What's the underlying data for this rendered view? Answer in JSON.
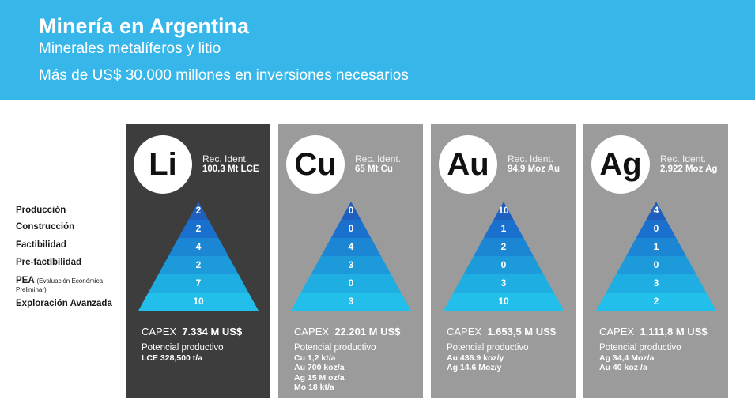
{
  "header": {
    "title": "Minería en Argentina",
    "subtitle1": "Minerales metalíferos y litio",
    "subtitle2": "Más de US$ 30.000 millones en inversiones necesarios"
  },
  "stages": [
    {
      "label": "Producción"
    },
    {
      "label": "Construcción"
    },
    {
      "label": "Factibilidad"
    },
    {
      "label": "Pre-factibilidad"
    },
    {
      "label": "PEA",
      "note1": "(Evaluación Económica",
      "note2": "Preliminar)"
    },
    {
      "label": "Exploración Avanzada"
    }
  ],
  "colors": {
    "header": "#36b6e9",
    "card_dark": "#3d3d3d",
    "card_gray": "#9b9b9b",
    "tiers": [
      "#1f5fbd",
      "#1a71cd",
      "#1b86d4",
      "#1d9ad9",
      "#1eaee1",
      "#21bfe9"
    ]
  },
  "minerals": [
    {
      "symbol": "Li",
      "rec_label": "Rec. Ident.",
      "rec_value": "100.3 Mt LCE",
      "pyramid": [
        "2",
        "2",
        "4",
        "2",
        "7",
        "10"
      ],
      "capex_label": "CAPEX",
      "capex_value": "7.334 M US$",
      "potential_title": "Potencial productivo",
      "potential": [
        "LCE 328,500 t/a"
      ]
    },
    {
      "symbol": "Cu",
      "rec_label": "Rec. Ident.",
      "rec_value": "65 Mt Cu",
      "pyramid": [
        "0",
        "0",
        "4",
        "3",
        "0",
        "3"
      ],
      "capex_label": "CAPEX",
      "capex_value": "22.201 M US$",
      "potential_title": "Potencial productivo",
      "potential": [
        "Cu 1,2 kt/a",
        "Au 700 koz/a",
        "Ag 15 M oz/a",
        "Mo 18 kt/a"
      ]
    },
    {
      "symbol": "Au",
      "rec_label": "Rec. Ident.",
      "rec_value": "94.9 Moz Au",
      "pyramid": [
        "10",
        "1",
        "2",
        "0",
        "3",
        "10"
      ],
      "capex_label": "CAPEX",
      "capex_value": "1.653,5 M US$",
      "potential_title": "Potencial productivo",
      "potential": [
        "Au 436.9 koz/y",
        "Ag 14.6 Moz/y"
      ]
    },
    {
      "symbol": "Ag",
      "rec_label": "Rec. Ident.",
      "rec_value": "2,922 Moz Ag",
      "pyramid": [
        "4",
        "0",
        "1",
        "0",
        "3",
        "2"
      ],
      "capex_label": "CAPEX",
      "capex_value": "1.111,8 M US$",
      "potential_title": "Potencial productivo",
      "potential": [
        "Ag 34,4 Moz/a",
        "Au 40 koz /a"
      ]
    }
  ]
}
